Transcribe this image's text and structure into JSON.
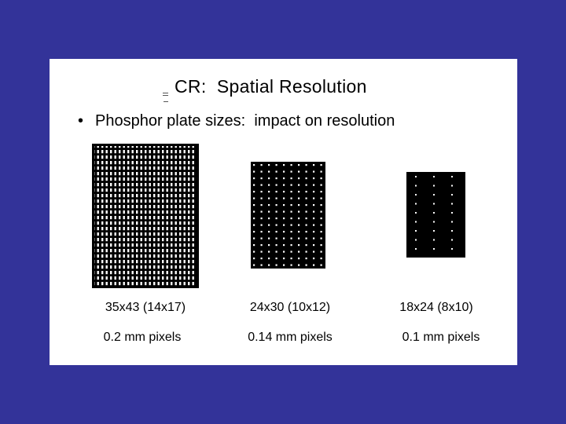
{
  "slide": {
    "title": "CR:  Spatial Resolution",
    "bullet": "Phosphor plate sizes:  impact on resolution",
    "plates": [
      {
        "size": "35x43 (14x17)",
        "pixels": "0.2 mm pixels"
      },
      {
        "size": "24x30 (10x12)",
        "pixels": "0.14 mm pixels"
      },
      {
        "size": "18x24 (8x10)",
        "pixels": "0.1 mm pixels"
      }
    ]
  },
  "colors": {
    "background": "#333399",
    "slide": "#ffffff",
    "plate": "#000000",
    "text": "#000000"
  }
}
